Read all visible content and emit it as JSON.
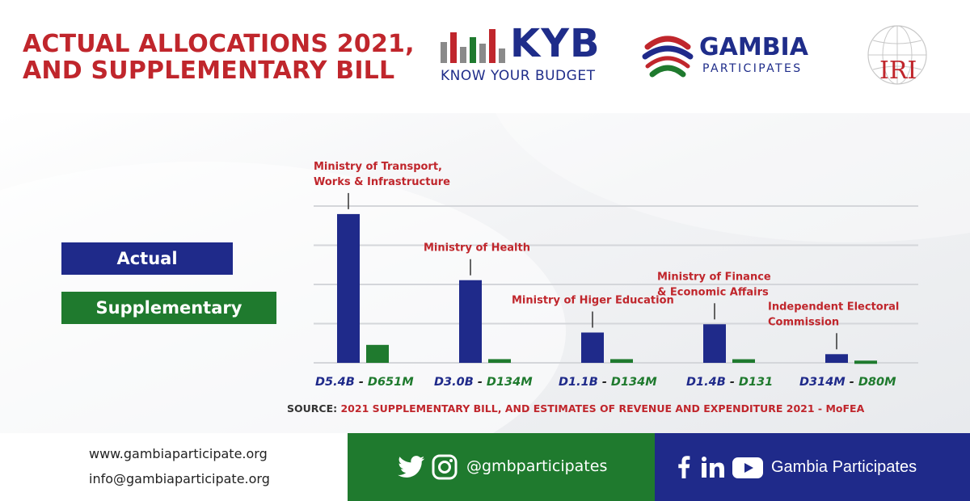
{
  "header": {
    "title_line1": "ACTUAL ALLOCATIONS 2021,",
    "title_line2": "AND SUPPLEMENTARY BILL",
    "kyb_word": "KYB",
    "kyb_sub": "KNOW YOUR BUDGET",
    "gp_title": "GAMBIA",
    "gp_sub": "PARTICIPATES",
    "iri_text": "IRI"
  },
  "colors": {
    "actual": "#1f2a8a",
    "supplementary": "#1f7a2e",
    "accent_red": "#c0262c"
  },
  "legend": {
    "actual": "Actual",
    "supplementary": "Supplementary"
  },
  "chart_data": {
    "type": "bar",
    "title": "",
    "xlabel": "",
    "ylabel": "",
    "ylim": [
      0,
      6.6
    ],
    "units": "billion dalasi",
    "grid": true,
    "legend_position": "left",
    "categories": [
      {
        "label_lines": [
          "Ministry of Transport,",
          "Works & Infrastructure"
        ],
        "actual_label": "D5.4B",
        "supp_label": "D651M"
      },
      {
        "label_lines": [
          "Ministry of Health"
        ],
        "actual_label": "D3.0B",
        "supp_label": "D134M"
      },
      {
        "label_lines": [
          "Ministry of Higer Education"
        ],
        "actual_label": "D1.1B",
        "supp_label": "D134M"
      },
      {
        "label_lines": [
          "Ministry of Finance",
          "& Economic Affairs"
        ],
        "actual_label": "D1.4B",
        "supp_label": "D131"
      },
      {
        "label_lines": [
          "Independent Electoral",
          "Commission"
        ],
        "actual_label": "D314M",
        "supp_label": "D80M"
      }
    ],
    "series": [
      {
        "name": "Actual",
        "values": [
          5.4,
          3.0,
          1.1,
          1.4,
          0.314
        ]
      },
      {
        "name": "Supplementary",
        "values": [
          0.651,
          0.134,
          0.134,
          0.131,
          0.08
        ]
      }
    ]
  },
  "source": {
    "label": "SOURCE:",
    "text": "2021 SUPPLEMENTARY BILL, AND ESTIMATES OF REVENUE AND EXPENDITURE 2021 - MoFEA"
  },
  "footer": {
    "website": "www.gambiaparticipate.org",
    "email": "info@gambiaparticipate.org",
    "handle": "@gmbparticipates",
    "page_name": "Gambia Participates",
    "icons": [
      "twitter-icon",
      "instagram-icon",
      "facebook-icon",
      "linkedin-icon",
      "youtube-icon"
    ]
  }
}
